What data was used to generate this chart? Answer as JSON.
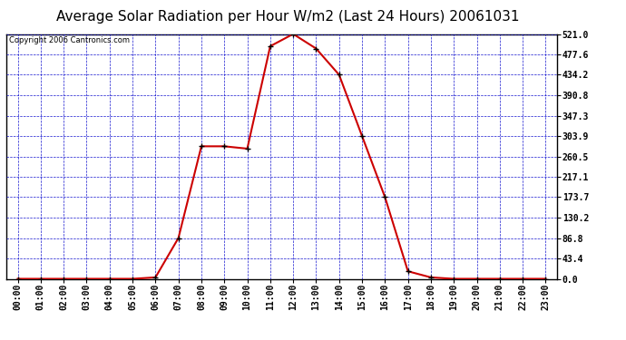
{
  "title": "Average Solar Radiation per Hour W/m2 (Last 24 Hours) 20061031",
  "copyright": "Copyright 2006 Cantronics.com",
  "hours": [
    0,
    1,
    2,
    3,
    4,
    5,
    6,
    7,
    8,
    9,
    10,
    11,
    12,
    13,
    14,
    15,
    16,
    17,
    18,
    19,
    20,
    21,
    22,
    23
  ],
  "values": [
    0,
    0,
    0,
    0,
    0,
    0,
    3,
    86.8,
    282,
    282,
    277,
    495,
    521,
    490,
    434.2,
    303.9,
    173.7,
    16,
    3,
    0,
    0,
    0,
    0,
    0
  ],
  "line_color": "#cc0000",
  "marker_color": "#000000",
  "bg_color": "#ffffff",
  "plot_bg_color": "#ffffff",
  "grid_color": "#0000cc",
  "border_color": "#000000",
  "axis_color": "#000000",
  "ymin": 0.0,
  "ymax": 521.0,
  "yticks": [
    0.0,
    43.4,
    86.8,
    130.2,
    173.7,
    217.1,
    260.5,
    303.9,
    347.3,
    390.8,
    434.2,
    477.6,
    521.0
  ],
  "title_fontsize": 11,
  "copyright_fontsize": 6,
  "tick_fontsize": 7
}
